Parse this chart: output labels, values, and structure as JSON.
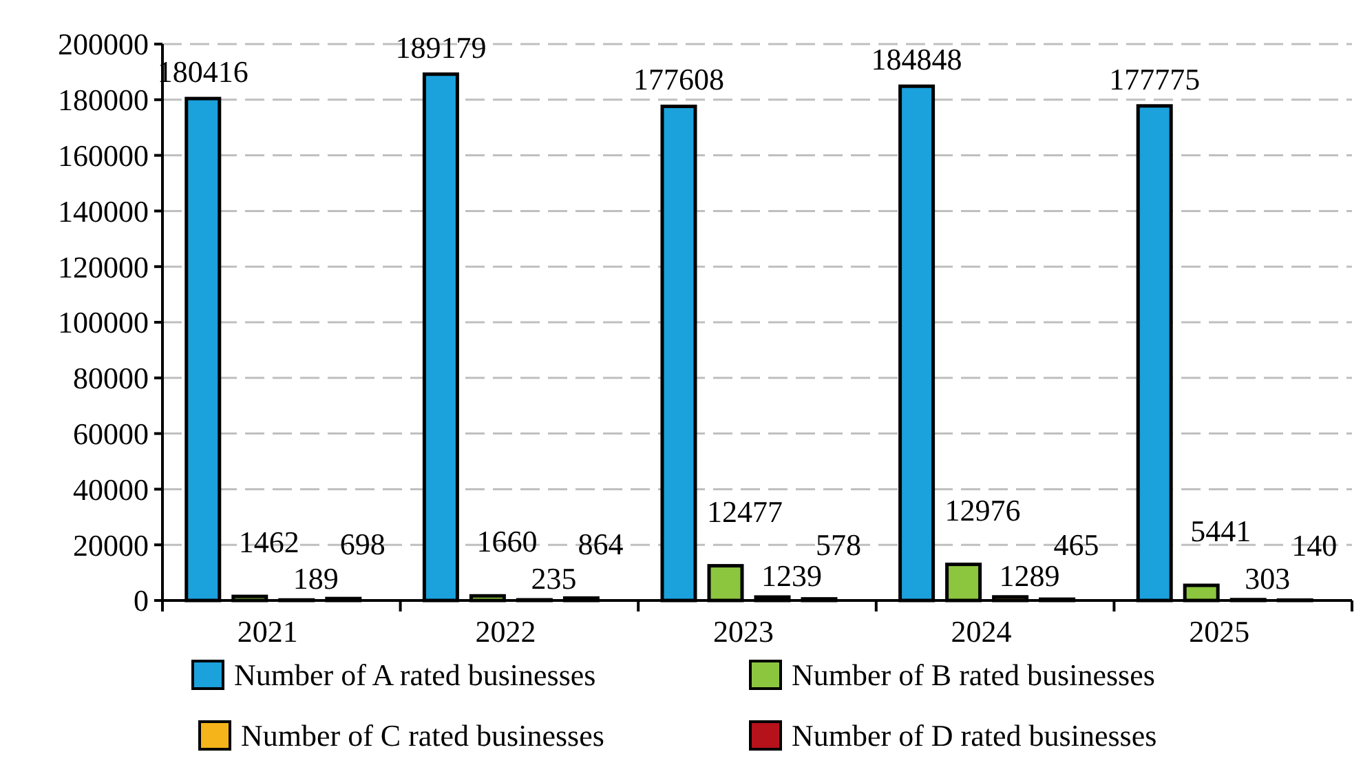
{
  "chart_data": {
    "type": "bar",
    "categories": [
      "2021",
      "2022",
      "2023",
      "2024",
      "2025"
    ],
    "series": [
      {
        "name": "Number of A rated businesses",
        "color": "#1ba1dc",
        "values": [
          180416,
          189179,
          177608,
          184848,
          177775
        ]
      },
      {
        "name": "Number of B rated businesses",
        "color": "#8cc63f",
        "values": [
          1462,
          1660,
          12477,
          12976,
          5441
        ]
      },
      {
        "name": "Number of C rated businesses",
        "color": "#f4b41a",
        "values": [
          189,
          235,
          1239,
          1289,
          303
        ]
      },
      {
        "name": "Number of D rated businesses",
        "color": "#b5121b",
        "values": [
          698,
          864,
          578,
          465,
          140
        ]
      }
    ],
    "ylim": [
      0,
      200000
    ],
    "yticks": [
      0,
      20000,
      40000,
      60000,
      80000,
      100000,
      120000,
      140000,
      160000,
      180000,
      200000
    ],
    "grid": "y",
    "data_labels": true,
    "legend": "bottom"
  }
}
